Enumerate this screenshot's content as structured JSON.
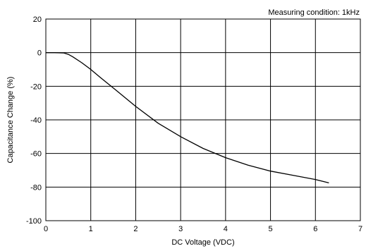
{
  "chart_data": {
    "type": "line",
    "annotation": "Measuring condition: 1kHz",
    "xlabel": "DC Voltage (VDC)",
    "ylabel": "Capacitance Change (%)",
    "xlim": [
      0,
      7
    ],
    "ylim": [
      -100,
      20
    ],
    "x_ticks": [
      0,
      1,
      2,
      3,
      4,
      5,
      6,
      7
    ],
    "y_ticks": [
      20,
      0,
      -20,
      -40,
      -60,
      -80,
      -100
    ],
    "x_tick_labels": [
      "0",
      "1",
      "2",
      "3",
      "4",
      "5",
      "6",
      "7"
    ],
    "y_tick_labels": [
      "20",
      "0",
      "-20",
      "-40",
      "-60",
      "-80",
      "-100"
    ],
    "grid": true,
    "series": [
      {
        "color": "#000000",
        "x": [
          0,
          0.2,
          0.4,
          0.5,
          0.6,
          0.8,
          1.0,
          1.2,
          1.5,
          2.0,
          2.5,
          3.0,
          3.5,
          4.0,
          4.5,
          5.0,
          5.5,
          6.0,
          6.3
        ],
        "y": [
          0,
          0,
          -0.2,
          -1,
          -2.5,
          -6,
          -10,
          -14.5,
          -21,
          -32,
          -42,
          -50,
          -57,
          -62.5,
          -67,
          -70.5,
          -73,
          -75.5,
          -77.5
        ]
      }
    ]
  }
}
